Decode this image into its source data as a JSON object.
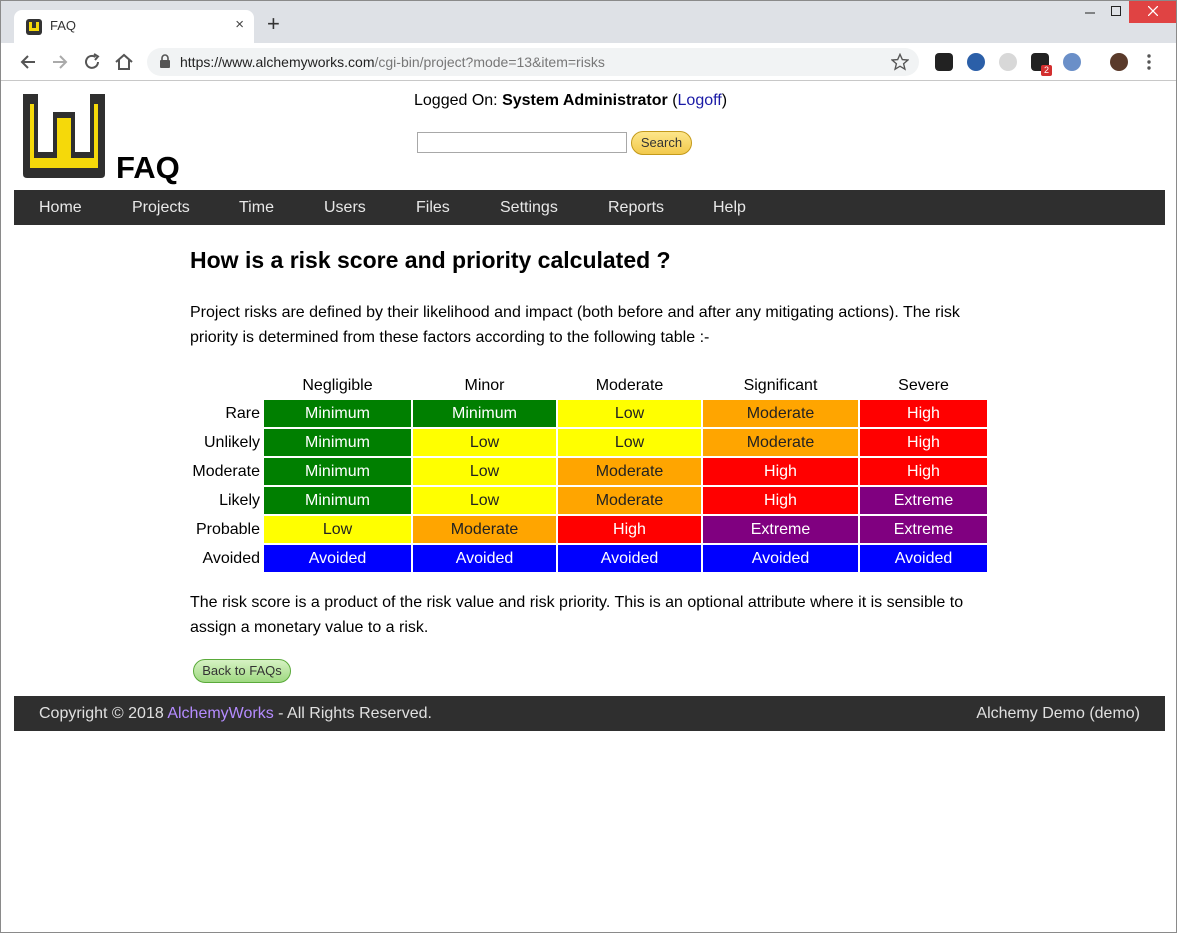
{
  "browser": {
    "tab_title": "FAQ",
    "tab_close": "×",
    "new_tab": "+",
    "url_host": "https://www.alchemyworks.com",
    "url_path": "/cgi-bin/project?mode=13&item=risks",
    "ext_badge": "2"
  },
  "header": {
    "logged_on_label": "Logged On:",
    "user_name": "System Administrator",
    "logoff_link": "Logoff",
    "page_heading": "FAQ",
    "search_placeholder": "",
    "search_button": "Search"
  },
  "nav": {
    "items": [
      "Home",
      "Projects",
      "Time",
      "Users",
      "Files",
      "Settings",
      "Reports",
      "Help"
    ]
  },
  "content": {
    "question_title": "How is a risk score and priority calculated ?",
    "intro": "Project risks are defined by their likelihood and impact (both before and after any mitigating actions). The risk priority is determined from these factors according to the following table :-",
    "outro": "The risk score is a product of the risk value and risk priority. This is an optional attribute where it is sensible to assign a monetary value to a risk.",
    "back_button": "Back to FAQs"
  },
  "risk_table": {
    "columns": [
      "Negligible",
      "Minor",
      "Moderate",
      "Significant",
      "Severe"
    ],
    "rows": [
      {
        "label": "Rare",
        "cells": [
          "Minimum",
          "Minimum",
          "Low",
          "Moderate",
          "High"
        ]
      },
      {
        "label": "Unlikely",
        "cells": [
          "Minimum",
          "Low",
          "Low",
          "Moderate",
          "High"
        ]
      },
      {
        "label": "Moderate",
        "cells": [
          "Minimum",
          "Low",
          "Moderate",
          "High",
          "High"
        ]
      },
      {
        "label": "Likely",
        "cells": [
          "Minimum",
          "Low",
          "Moderate",
          "High",
          "Extreme"
        ]
      },
      {
        "label": "Probable",
        "cells": [
          "Low",
          "Moderate",
          "High",
          "Extreme",
          "Extreme"
        ]
      },
      {
        "label": "Avoided",
        "cells": [
          "Avoided",
          "Avoided",
          "Avoided",
          "Avoided",
          "Avoided"
        ]
      }
    ],
    "colors": {
      "Minimum": "#007f00",
      "Low": "#ffff00",
      "Moderate": "#ffa500",
      "High": "#ff0000",
      "Extreme": "#800080",
      "Avoided": "#0000ff"
    }
  },
  "footer": {
    "copyright_prefix": "Copyright © 2018 ",
    "company_link": "AlchemyWorks",
    "copyright_suffix": " - All Rights Reserved.",
    "instance": "Alchemy Demo (demo)"
  }
}
